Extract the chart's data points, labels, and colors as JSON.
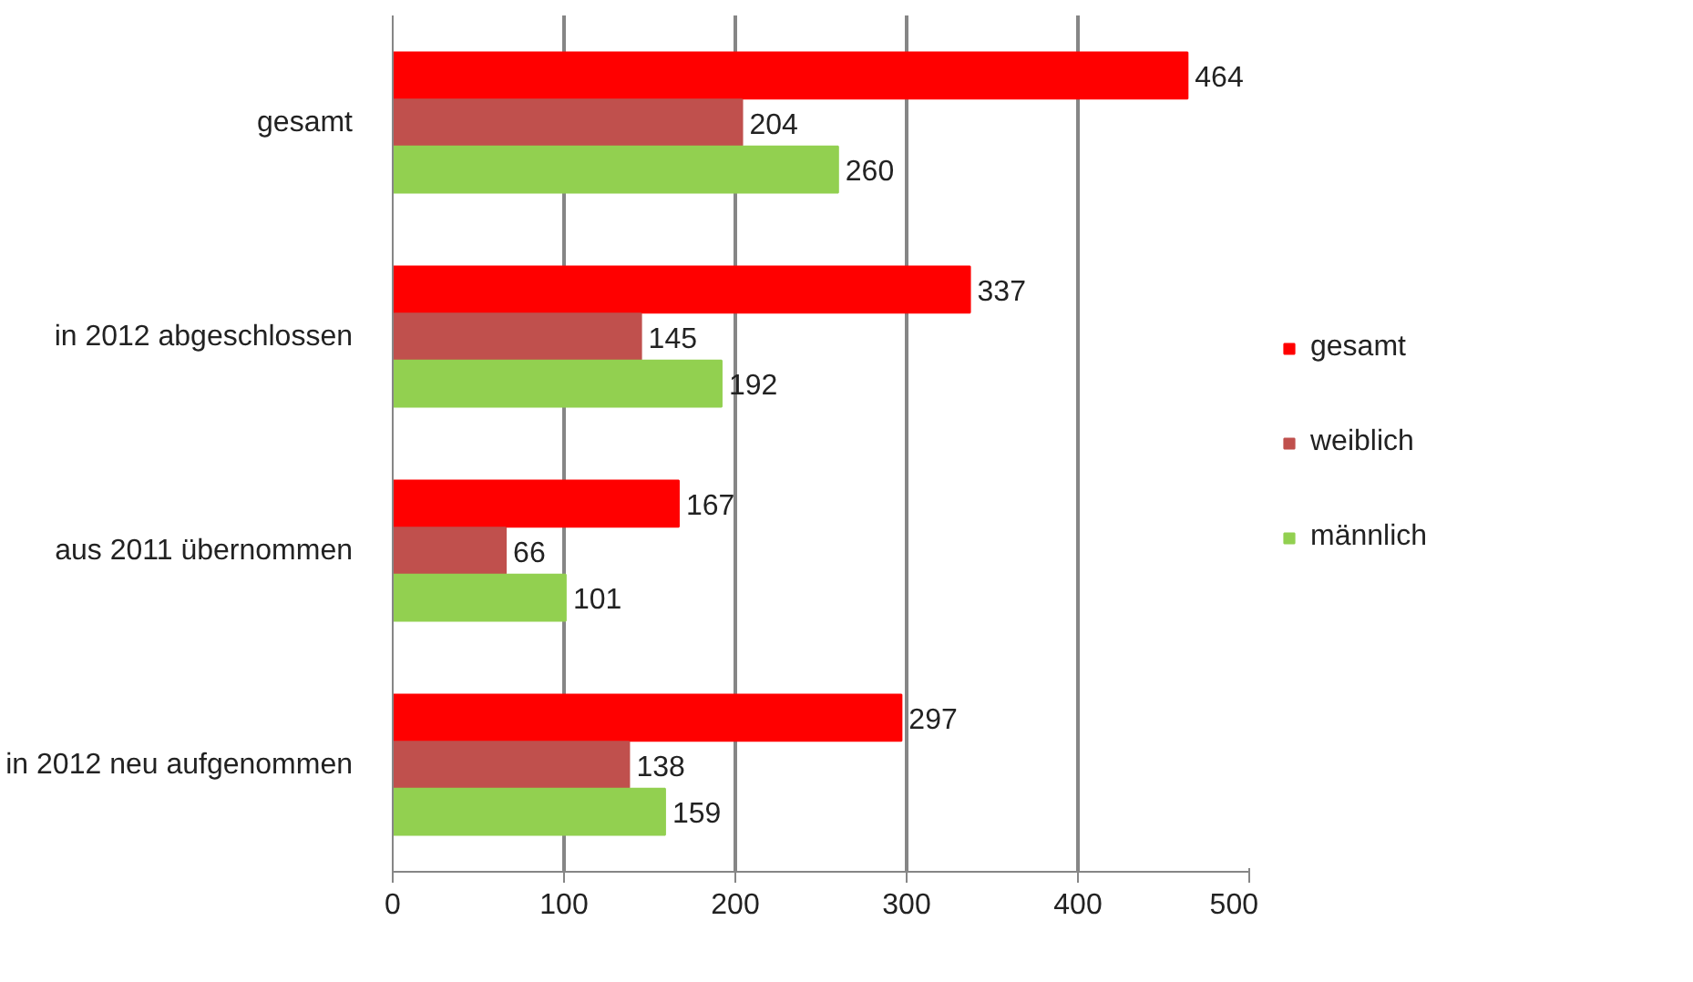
{
  "chart_data": {
    "type": "bar",
    "orientation": "horizontal",
    "categories": [
      "gesamt",
      "in 2012 abgeschlossen",
      "aus 2011 übernommen",
      "in 2012 neu aufgenommen"
    ],
    "series": [
      {
        "name": "gesamt",
        "color": "#ff0000",
        "values": [
          464,
          337,
          167,
          297
        ]
      },
      {
        "name": "weiblich",
        "color": "#c0504d",
        "values": [
          204,
          145,
          66,
          138
        ]
      },
      {
        "name": "männlich",
        "color": "#92d050",
        "values": [
          260,
          192,
          101,
          159
        ]
      }
    ],
    "xlim": [
      0,
      500
    ],
    "xticks": [
      0,
      100,
      200,
      300,
      400,
      500
    ],
    "grid": "x",
    "legend": "right",
    "data_labels": true
  }
}
